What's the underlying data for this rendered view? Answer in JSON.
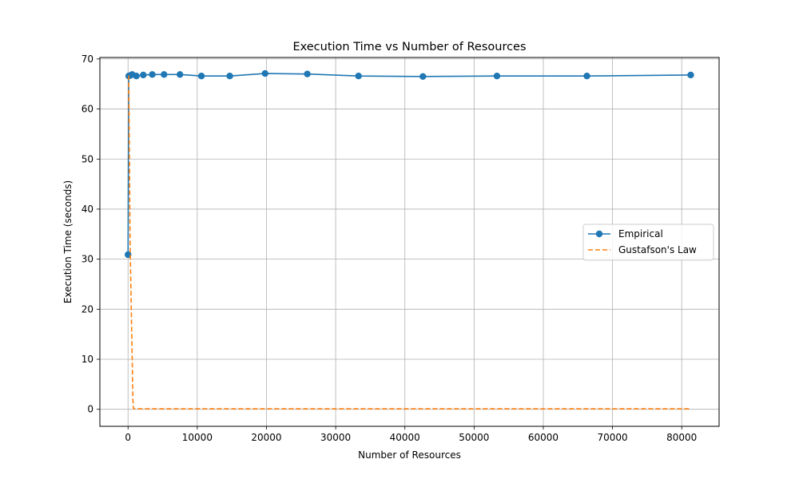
{
  "chart_data": {
    "type": "line",
    "title": "Execution Time vs Number of Resources",
    "xlabel": "Number of Resources",
    "ylabel": "Execution Time (seconds)",
    "xlim": [
      -4070,
      85400
    ],
    "ylim": [
      -3.4,
      70.3
    ],
    "xticks": [
      0,
      10000,
      20000,
      30000,
      40000,
      50000,
      60000,
      70000,
      80000
    ],
    "yticks": [
      0,
      10,
      20,
      30,
      40,
      50,
      60,
      70
    ],
    "grid": true,
    "legend_position": "center-right",
    "series": [
      {
        "name": "Empirical",
        "style": "solid-with-markers",
        "color": "#1f77b4",
        "x": [
          1,
          100,
          300,
          600,
          1200,
          2200,
          3500,
          5200,
          7500,
          10600,
          14700,
          19800,
          25900,
          33300,
          42600,
          53300,
          66300,
          81300
        ],
        "y": [
          30.9,
          66.6,
          66.7,
          66.9,
          66.6,
          66.8,
          66.9,
          66.9,
          66.9,
          66.6,
          66.6,
          67.1,
          67.0,
          66.6,
          66.5,
          66.6,
          66.6,
          66.8
        ]
      },
      {
        "name": "Gustafson's Law",
        "style": "dashed",
        "color": "#ff7f0e",
        "x": [
          1,
          100,
          300,
          600,
          700,
          800,
          1200,
          2200,
          81300
        ],
        "y": [
          66.6,
          66.6,
          33.0,
          10.0,
          2.0,
          0.1,
          0.1,
          0.1,
          0.1
        ]
      }
    ]
  }
}
